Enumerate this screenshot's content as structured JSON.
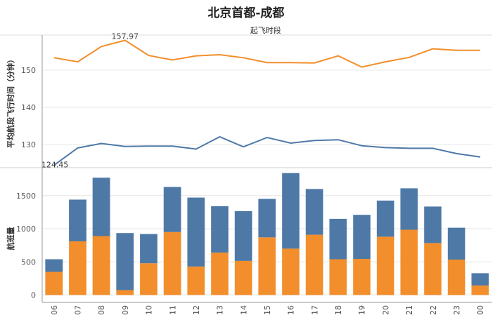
{
  "title": "北京首都-成都",
  "subtitle": "起飞时段",
  "colors": {
    "blue": "#4e79a7",
    "orange": "#f28e2b",
    "grid": "#e6e6e6",
    "axis": "#999999"
  },
  "chart_data": [
    {
      "type": "line",
      "ylabel": "平均航段飞行时间（分钟）",
      "ylim": [
        124,
        159
      ],
      "yticks": [
        "130",
        "140",
        "150"
      ],
      "categories": [
        "06",
        "07",
        "08",
        "09",
        "10",
        "11",
        "12",
        "13",
        "14",
        "15",
        "16",
        "17",
        "18",
        "19",
        "20",
        "21",
        "22",
        "23",
        "00"
      ],
      "series": [
        {
          "color": "#f28e2b",
          "values": [
            153.3,
            152.2,
            156.3,
            157.97,
            153.9,
            152.7,
            153.8,
            154.1,
            153.3,
            152.0,
            152.0,
            151.9,
            153.8,
            150.8,
            152.2,
            153.4,
            155.7,
            155.3,
            155.3
          ]
        },
        {
          "color": "#4e79a7",
          "values": [
            124.45,
            129.1,
            130.3,
            129.5,
            129.6,
            129.6,
            128.8,
            132.1,
            129.4,
            131.9,
            130.4,
            131.1,
            131.3,
            129.7,
            129.2,
            129.0,
            129.0,
            127.6,
            126.7
          ]
        }
      ],
      "labels": [
        {
          "text": "157.97"
        },
        {
          "text": "124.45"
        }
      ]
    },
    {
      "type": "bar",
      "stacked": true,
      "ylabel": "航班量",
      "ylim": [
        -100,
        1900
      ],
      "yticks": [
        "0",
        "500",
        "1000",
        "1500"
      ],
      "categories": [
        "06",
        "07",
        "08",
        "09",
        "10",
        "11",
        "12",
        "13",
        "14",
        "15",
        "16",
        "17",
        "18",
        "19",
        "20",
        "21",
        "22",
        "23",
        "00"
      ],
      "series": [
        {
          "color": "#f28e2b",
          "values": [
            350,
            810,
            890,
            75,
            480,
            950,
            430,
            640,
            515,
            870,
            700,
            910,
            540,
            545,
            880,
            985,
            785,
            535,
            145
          ]
        },
        {
          "color": "#4e79a7",
          "values": [
            190,
            630,
            880,
            860,
            440,
            680,
            1040,
            700,
            750,
            580,
            1140,
            690,
            610,
            665,
            545,
            625,
            550,
            480,
            185
          ]
        }
      ]
    }
  ]
}
